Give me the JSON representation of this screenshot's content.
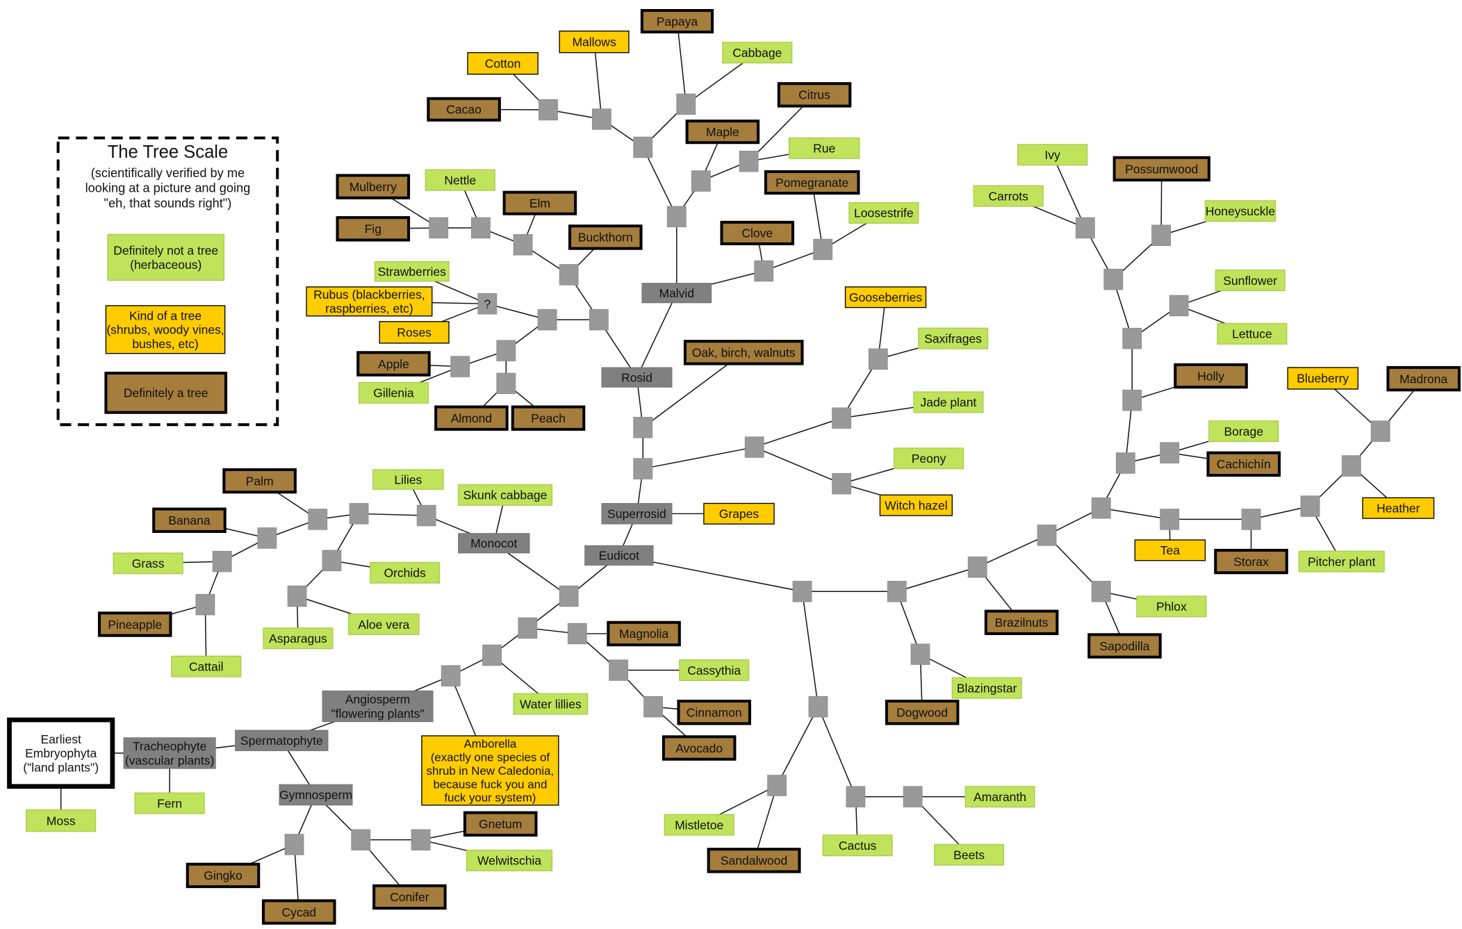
{
  "legend": {
    "title": "The Tree Scale",
    "subtitle": [
      "(scientifically verified by me",
      "looking at a picture and going",
      "\"eh, that sounds right\")"
    ],
    "items": [
      {
        "kind": "herbaceous",
        "label": "Definitely not a tree\n(herbaceous)"
      },
      {
        "kind": "shrub",
        "label": "Kind of a tree\n(shrubs, woody vines,\nbushes, etc)"
      },
      {
        "kind": "tree",
        "label": "Definitely a tree"
      }
    ]
  },
  "colors": {
    "herbaceous": "#bfe35a",
    "shrub": "#ffcc00",
    "tree": "#a57d3c",
    "clade": "#808080",
    "junction": "#999999"
  },
  "nodes": [
    {
      "id": "papaya",
      "label": "Papaya",
      "kind": "tree"
    },
    {
      "id": "mallows",
      "label": "Mallows",
      "kind": "shrub"
    },
    {
      "id": "cabbage",
      "label": "Cabbage",
      "kind": "herbaceous"
    },
    {
      "id": "cotton",
      "label": "Cotton",
      "kind": "shrub"
    },
    {
      "id": "cacao",
      "label": "Cacao",
      "kind": "tree"
    },
    {
      "id": "citrus",
      "label": "Citrus",
      "kind": "tree"
    },
    {
      "id": "maple",
      "label": "Maple",
      "kind": "tree"
    },
    {
      "id": "rue",
      "label": "Rue",
      "kind": "herbaceous"
    },
    {
      "id": "pomegranate",
      "label": "Pomegranate",
      "kind": "tree"
    },
    {
      "id": "nettle",
      "label": "Nettle",
      "kind": "herbaceous"
    },
    {
      "id": "mulberry",
      "label": "Mulberry",
      "kind": "tree"
    },
    {
      "id": "elm",
      "label": "Elm",
      "kind": "tree"
    },
    {
      "id": "fig",
      "label": "Fig",
      "kind": "tree"
    },
    {
      "id": "loosestrife",
      "label": "Loosestrife",
      "kind": "herbaceous"
    },
    {
      "id": "clove",
      "label": "Clove",
      "kind": "tree"
    },
    {
      "id": "buckthorn",
      "label": "Buckthorn",
      "kind": "tree"
    },
    {
      "id": "strawberries",
      "label": "Strawberries",
      "kind": "herbaceous"
    },
    {
      "id": "rubus",
      "label": "Rubus (blackberries,\nraspberries, etc)",
      "kind": "shrub"
    },
    {
      "id": "roses",
      "label": "Roses",
      "kind": "shrub"
    },
    {
      "id": "malvid",
      "label": "Malvid",
      "kind": "clade"
    },
    {
      "id": "apple",
      "label": "Apple",
      "kind": "tree"
    },
    {
      "id": "gillenia",
      "label": "Gillenia",
      "kind": "herbaceous"
    },
    {
      "id": "rosid",
      "label": "Rosid",
      "kind": "clade"
    },
    {
      "id": "oak",
      "label": "Oak, birch, walnuts",
      "kind": "tree"
    },
    {
      "id": "almond",
      "label": "Almond",
      "kind": "tree"
    },
    {
      "id": "peach",
      "label": "Peach",
      "kind": "tree"
    },
    {
      "id": "gooseberries",
      "label": "Gooseberries",
      "kind": "shrub"
    },
    {
      "id": "saxifrages",
      "label": "Saxifrages",
      "kind": "herbaceous"
    },
    {
      "id": "jade",
      "label": "Jade plant",
      "kind": "herbaceous"
    },
    {
      "id": "peony",
      "label": "Peony",
      "kind": "herbaceous"
    },
    {
      "id": "witchhazel",
      "label": "Witch hazel",
      "kind": "shrub"
    },
    {
      "id": "superrosid",
      "label": "Superrosid",
      "kind": "clade"
    },
    {
      "id": "grapes",
      "label": "Grapes",
      "kind": "shrub"
    },
    {
      "id": "eudicot",
      "label": "Eudicot",
      "kind": "clade"
    },
    {
      "id": "palm",
      "label": "Palm",
      "kind": "tree"
    },
    {
      "id": "lilies",
      "label": "Lilies",
      "kind": "herbaceous"
    },
    {
      "id": "skunk",
      "label": "Skunk cabbage",
      "kind": "herbaceous"
    },
    {
      "id": "banana",
      "label": "Banana",
      "kind": "tree"
    },
    {
      "id": "monocot",
      "label": "Monocot",
      "kind": "clade"
    },
    {
      "id": "grass",
      "label": "Grass",
      "kind": "herbaceous"
    },
    {
      "id": "orchids",
      "label": "Orchids",
      "kind": "herbaceous"
    },
    {
      "id": "pineapple",
      "label": "Pineapple",
      "kind": "tree"
    },
    {
      "id": "aloe",
      "label": "Aloe vera",
      "kind": "herbaceous"
    },
    {
      "id": "asparagus",
      "label": "Asparagus",
      "kind": "herbaceous"
    },
    {
      "id": "cattail",
      "label": "Cattail",
      "kind": "herbaceous"
    },
    {
      "id": "magnolia",
      "label": "Magnolia",
      "kind": "tree"
    },
    {
      "id": "cassythia",
      "label": "Cassythia",
      "kind": "herbaceous"
    },
    {
      "id": "waterlillies",
      "label": "Water lillies",
      "kind": "herbaceous"
    },
    {
      "id": "angiosperm",
      "label": "Angiosperm\n\"flowering plants\"",
      "kind": "clade"
    },
    {
      "id": "cinnamon",
      "label": "Cinnamon",
      "kind": "tree"
    },
    {
      "id": "amborella",
      "label": "Amborella\n(exactly one species of\nshrub in New Caledonia,\nbecause fuck you and\nfuck your system)",
      "kind": "shrub"
    },
    {
      "id": "avocado",
      "label": "Avocado",
      "kind": "tree"
    },
    {
      "id": "earliest",
      "label": "Earliest\nEmbryophyta\n(\"land plants\")",
      "kind": "root"
    },
    {
      "id": "tracheophyte",
      "label": "Tracheophyte\n(vascular plants)",
      "kind": "clade"
    },
    {
      "id": "spermatophyte",
      "label": "Spermatophyte",
      "kind": "clade"
    },
    {
      "id": "gymnosperm",
      "label": "Gymnosperm",
      "kind": "clade"
    },
    {
      "id": "fern",
      "label": "Fern",
      "kind": "herbaceous"
    },
    {
      "id": "moss",
      "label": "Moss",
      "kind": "herbaceous"
    },
    {
      "id": "gnetum",
      "label": "Gnetum",
      "kind": "tree"
    },
    {
      "id": "welwitschia",
      "label": "Welwitschia",
      "kind": "herbaceous"
    },
    {
      "id": "gingko",
      "label": "Gingko",
      "kind": "tree"
    },
    {
      "id": "conifer",
      "label": "Conifer",
      "kind": "tree"
    },
    {
      "id": "cycad",
      "label": "Cycad",
      "kind": "tree"
    },
    {
      "id": "mistletoe",
      "label": "Mistletoe",
      "kind": "herbaceous"
    },
    {
      "id": "sandalwood",
      "label": "Sandalwood",
      "kind": "tree"
    },
    {
      "id": "cactus",
      "label": "Cactus",
      "kind": "herbaceous"
    },
    {
      "id": "amaranth",
      "label": "Amaranth",
      "kind": "herbaceous"
    },
    {
      "id": "beets",
      "label": "Beets",
      "kind": "herbaceous"
    },
    {
      "id": "dogwood",
      "label": "Dogwood",
      "kind": "tree"
    },
    {
      "id": "blazingstar",
      "label": "Blazingstar",
      "kind": "herbaceous"
    },
    {
      "id": "brazilnuts",
      "label": "Brazilnuts",
      "kind": "tree"
    },
    {
      "id": "sapodilla",
      "label": "Sapodilla",
      "kind": "tree"
    },
    {
      "id": "phlox",
      "label": "Phlox",
      "kind": "herbaceous"
    },
    {
      "id": "tea",
      "label": "Tea",
      "kind": "shrub"
    },
    {
      "id": "storax",
      "label": "Storax",
      "kind": "tree"
    },
    {
      "id": "pitcher",
      "label": "Pitcher plant",
      "kind": "herbaceous"
    },
    {
      "id": "heather",
      "label": "Heather",
      "kind": "shrub"
    },
    {
      "id": "blueberry",
      "label": "Blueberry",
      "kind": "shrub"
    },
    {
      "id": "madrona",
      "label": "Madrona",
      "kind": "tree"
    },
    {
      "id": "cachichin",
      "label": "Cachichín",
      "kind": "tree"
    },
    {
      "id": "borage",
      "label": "Borage",
      "kind": "herbaceous"
    },
    {
      "id": "holly",
      "label": "Holly",
      "kind": "tree"
    },
    {
      "id": "sunflower",
      "label": "Sunflower",
      "kind": "herbaceous"
    },
    {
      "id": "lettuce",
      "label": "Lettuce",
      "kind": "herbaceous"
    },
    {
      "id": "honeysuckle",
      "label": "Honeysuckle",
      "kind": "herbaceous"
    },
    {
      "id": "possumwood",
      "label": "Possumwood",
      "kind": "tree"
    },
    {
      "id": "carrots",
      "label": "Carrots",
      "kind": "herbaceous"
    },
    {
      "id": "ivy",
      "label": "Ivy",
      "kind": "herbaceous"
    },
    {
      "id": "j_q",
      "label": "?",
      "kind": "junction"
    }
  ],
  "edges": [
    [
      "j_cacao",
      "cacao"
    ],
    [
      "j_cacao",
      "cotton"
    ],
    [
      "j_cacao",
      "j_mal1"
    ],
    [
      "j_mal1",
      "mallows"
    ],
    [
      "j_mal1",
      "j_mal2"
    ],
    [
      "j_pap",
      "papaya"
    ],
    [
      "j_pap",
      "cabbage"
    ],
    [
      "j_pap",
      "j_mal2"
    ],
    [
      "j_mal2",
      "j_mal3"
    ],
    [
      "j_citrus",
      "citrus"
    ],
    [
      "j_citrus",
      "rue"
    ],
    [
      "j_citrus",
      "j_maple"
    ],
    [
      "j_maple",
      "maple"
    ],
    [
      "j_maple",
      "j_mal3"
    ],
    [
      "j_mal3",
      "malvid"
    ],
    [
      "malvid",
      "j_clove"
    ],
    [
      "malvid",
      "rosid"
    ],
    [
      "j_clove",
      "clove"
    ],
    [
      "j_clove",
      "j_pom"
    ],
    [
      "j_pom",
      "pomegranate"
    ],
    [
      "j_pom",
      "loosestrife"
    ],
    [
      "rosid",
      "j_ros1"
    ],
    [
      "rosid",
      "j_r"
    ],
    [
      "j_ros1",
      "j_buck"
    ],
    [
      "j_ros1",
      "j_rosa"
    ],
    [
      "j_buck",
      "buckthorn"
    ],
    [
      "j_buck",
      "j_elm"
    ],
    [
      "j_elm",
      "elm"
    ],
    [
      "j_elm",
      "j_nettle"
    ],
    [
      "j_nettle",
      "nettle"
    ],
    [
      "j_nettle",
      "j_fig"
    ],
    [
      "j_fig",
      "mulberry"
    ],
    [
      "j_fig",
      "fig"
    ],
    [
      "j_rosa",
      "j_q"
    ],
    [
      "j_rosa",
      "j_rosc"
    ],
    [
      "j_q",
      "strawberries"
    ],
    [
      "j_q",
      "rubus"
    ],
    [
      "j_q",
      "roses"
    ],
    [
      "j_rosc",
      "j_apple"
    ],
    [
      "j_rosc",
      "j_almond"
    ],
    [
      "j_apple",
      "apple"
    ],
    [
      "j_apple",
      "gillenia"
    ],
    [
      "j_almond",
      "almond"
    ],
    [
      "j_almond",
      "peach"
    ],
    [
      "j_r",
      "oak"
    ],
    [
      "j_r",
      "j_sup"
    ],
    [
      "j_sup",
      "j_saxi"
    ],
    [
      "j_sup",
      "superrosid"
    ],
    [
      "j_saxi",
      "j_jade"
    ],
    [
      "j_saxi",
      "j_peony"
    ],
    [
      "j_jade",
      "jade"
    ],
    [
      "j_jade",
      "j_goose"
    ],
    [
      "j_goose",
      "gooseberries"
    ],
    [
      "j_goose",
      "saxifrages"
    ],
    [
      "j_peony",
      "peony"
    ],
    [
      "j_peony",
      "witchhazel"
    ],
    [
      "superrosid",
      "grapes"
    ],
    [
      "superrosid",
      "eudicot"
    ],
    [
      "eudicot",
      "j_eud"
    ],
    [
      "eudicot",
      "j_as"
    ],
    [
      "j_eud",
      "monocot"
    ],
    [
      "j_eud",
      "j_ang1"
    ],
    [
      "monocot",
      "skunk"
    ],
    [
      "monocot",
      "j_lil"
    ],
    [
      "j_lil",
      "lilies"
    ],
    [
      "j_lil",
      "j_mono2"
    ],
    [
      "j_mono2",
      "j_palm"
    ],
    [
      "j_mono2",
      "j_orch"
    ],
    [
      "j_palm",
      "palm"
    ],
    [
      "j_palm",
      "j_ban"
    ],
    [
      "j_ban",
      "banana"
    ],
    [
      "j_ban",
      "j_grass"
    ],
    [
      "j_grass",
      "grass"
    ],
    [
      "j_grass",
      "j_pine"
    ],
    [
      "j_pine",
      "pineapple"
    ],
    [
      "j_pine",
      "cattail"
    ],
    [
      "j_orch",
      "orchids"
    ],
    [
      "j_orch",
      "j_asp"
    ],
    [
      "j_asp",
      "asparagus"
    ],
    [
      "j_asp",
      "aloe"
    ],
    [
      "j_ang1",
      "j_mag"
    ],
    [
      "j_ang1",
      "j_ang2"
    ],
    [
      "j_mag",
      "magnolia"
    ],
    [
      "j_mag",
      "j_cass"
    ],
    [
      "j_cass",
      "cassythia"
    ],
    [
      "j_cass",
      "j_cinn"
    ],
    [
      "j_cinn",
      "cinnamon"
    ],
    [
      "j_cinn",
      "avocado"
    ],
    [
      "j_ang2",
      "waterlillies"
    ],
    [
      "j_ang2",
      "j_ang3"
    ],
    [
      "j_ang3",
      "amborella"
    ],
    [
      "j_ang3",
      "angiosperm"
    ],
    [
      "angiosperm",
      "spermatophyte"
    ],
    [
      "spermatophyte",
      "tracheophyte"
    ],
    [
      "spermatophyte",
      "gymnosperm"
    ],
    [
      "tracheophyte",
      "earliest"
    ],
    [
      "tracheophyte",
      "fern"
    ],
    [
      "earliest",
      "moss"
    ],
    [
      "gymnosperm",
      "j_gink"
    ],
    [
      "gymnosperm",
      "j_con"
    ],
    [
      "j_gink",
      "gingko"
    ],
    [
      "j_gink",
      "cycad"
    ],
    [
      "j_con",
      "conifer"
    ],
    [
      "j_con",
      "j_gne"
    ],
    [
      "j_gne",
      "gnetum"
    ],
    [
      "j_gne",
      "welwitschia"
    ],
    [
      "j_as",
      "j_car"
    ],
    [
      "j_as",
      "j_as2"
    ],
    [
      "j_car",
      "j_mist"
    ],
    [
      "j_car",
      "j_cact"
    ],
    [
      "j_mist",
      "mistletoe"
    ],
    [
      "j_mist",
      "sandalwood"
    ],
    [
      "j_cact",
      "cactus"
    ],
    [
      "j_cact",
      "j_amar"
    ],
    [
      "j_amar",
      "amaranth"
    ],
    [
      "j_amar",
      "beets"
    ],
    [
      "j_as2",
      "j_dog"
    ],
    [
      "j_as2",
      "j_as3"
    ],
    [
      "j_dog",
      "dogwood"
    ],
    [
      "j_dog",
      "blazingstar"
    ],
    [
      "j_as3",
      "brazilnuts"
    ],
    [
      "j_as3",
      "j_as4"
    ],
    [
      "j_as4",
      "j_phlox"
    ],
    [
      "j_as4",
      "j_as5"
    ],
    [
      "j_phlox",
      "phlox"
    ],
    [
      "j_phlox",
      "sapodilla"
    ],
    [
      "j_as5",
      "j_tea"
    ],
    [
      "j_as5",
      "j_as6"
    ],
    [
      "j_tea",
      "tea"
    ],
    [
      "j_tea",
      "j_stor"
    ],
    [
      "j_stor",
      "storax"
    ],
    [
      "j_stor",
      "j_eric"
    ],
    [
      "j_eric",
      "pitcher"
    ],
    [
      "j_eric",
      "j_heath"
    ],
    [
      "j_heath",
      "heather"
    ],
    [
      "j_heath",
      "j_mad"
    ],
    [
      "j_mad",
      "blueberry"
    ],
    [
      "j_mad",
      "madrona"
    ],
    [
      "j_as6",
      "j_bor"
    ],
    [
      "j_as6",
      "j_holly"
    ],
    [
      "j_bor",
      "borage"
    ],
    [
      "j_bor",
      "cachichin"
    ],
    [
      "j_holly",
      "holly"
    ],
    [
      "j_holly",
      "j_ast"
    ],
    [
      "j_ast",
      "j_sun"
    ],
    [
      "j_ast",
      "j_ast2"
    ],
    [
      "j_sun",
      "sunflower"
    ],
    [
      "j_sun",
      "lettuce"
    ],
    [
      "j_ast2",
      "j_ivy"
    ],
    [
      "j_ast2",
      "j_poss"
    ],
    [
      "j_ivy",
      "ivy"
    ],
    [
      "j_ivy",
      "carrots"
    ],
    [
      "j_poss",
      "possumwood"
    ],
    [
      "j_poss",
      "honeysuckle"
    ]
  ]
}
